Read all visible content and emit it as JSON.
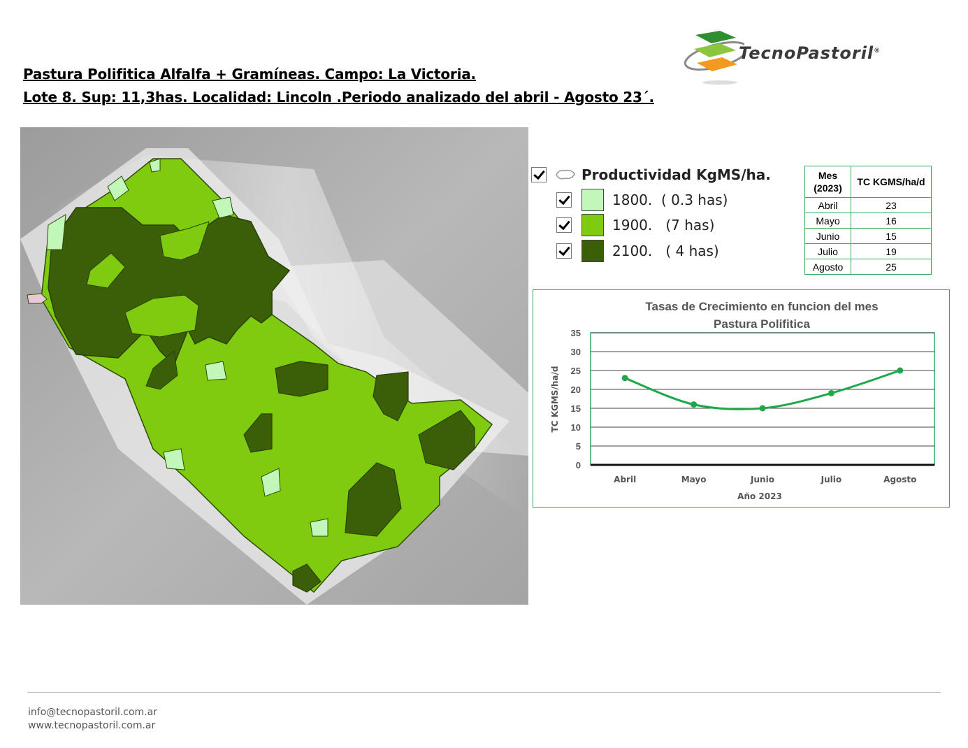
{
  "header": {
    "title_line1": "Pastura  Polifitica  Alfalfa + Gramíneas.  Campo:  La Victoria.",
    "title_line2": "Lote  8.  Sup:  11,3has.   Localidad:  Lincoln  .Periodo  analizado  del  abril   - Agosto  23´."
  },
  "logo": {
    "text": "TecnoPastoril",
    "mark": "®"
  },
  "legend": {
    "heading": "Productividad KgMS/ha.",
    "items": [
      {
        "label": "1800.  ( 0.3 has)",
        "color": "#c2f7ba"
      },
      {
        "label": "1900.   (7 has)",
        "color": "#7ecb10"
      },
      {
        "label": "2100.   ( 4 has)",
        "color": "#3b5e08"
      }
    ]
  },
  "table": {
    "col_mes_line1": "Mes",
    "col_mes_line2": "(2023)",
    "col_tc": "TC KGMS/ha/d",
    "rows": [
      {
        "mes": "Abril",
        "tc": "23"
      },
      {
        "mes": "Mayo",
        "tc": "16"
      },
      {
        "mes": "Junio",
        "tc": "15"
      },
      {
        "mes": "Julio",
        "tc": "19"
      },
      {
        "mes": "Agosto",
        "tc": "25"
      }
    ]
  },
  "chart_data": {
    "type": "line",
    "title": "Tasas de Crecimiento en funcion del mes",
    "subtitle": "Pastura Polifitica",
    "xlabel": "Año 2023",
    "ylabel": "TC KGMS/ha/d",
    "categories": [
      "Abril",
      "Mayo",
      "Junio",
      "Julio",
      "Agosto"
    ],
    "series": [
      {
        "values": [
          23,
          16,
          15,
          19,
          25
        ],
        "color": "#1fa84a"
      }
    ],
    "ylim": [
      0,
      35
    ],
    "yticks": [
      0,
      5,
      10,
      15,
      20,
      25,
      30,
      35
    ],
    "grid": true,
    "legend": "none"
  },
  "footer": {
    "email": "info@tecnopastoril.com.ar",
    "web": "www.tecnopastoril.com.ar"
  }
}
